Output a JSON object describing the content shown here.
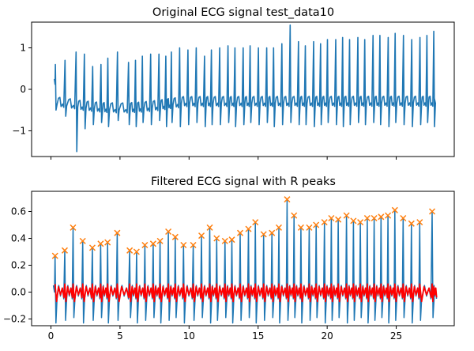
{
  "chart_data": [
    {
      "type": "line",
      "title": "Original ECG signal test_data10",
      "xlabel": "",
      "ylabel": "",
      "xlim": [
        -1.4,
        29.2
      ],
      "ylim": [
        -1.62,
        1.62
      ],
      "xticks": [
        0,
        5,
        10,
        15,
        20,
        25
      ],
      "xtick_labels": [
        "",
        "",
        "",
        "",
        "",
        ""
      ],
      "yticks": [
        -1,
        0,
        1
      ],
      "ytick_labels": [
        "−1",
        "0",
        "1"
      ],
      "grid": false,
      "colors": {
        "signal": "#1f77b4"
      },
      "signal": {
        "duration_s": 27.8,
        "beat_times": [
          0.3,
          1.0,
          1.8,
          2.4,
          3.0,
          3.6,
          4.1,
          4.8,
          5.6,
          6.1,
          6.6,
          7.2,
          7.8,
          8.3,
          8.7,
          9.3,
          9.9,
          10.5,
          11.1,
          11.6,
          12.2,
          12.8,
          13.3,
          13.9,
          14.4,
          15.0,
          15.6,
          16.1,
          16.7,
          17.3,
          17.9,
          18.4,
          19.0,
          19.5,
          20.0,
          20.6,
          21.1,
          21.6,
          22.2,
          22.7,
          23.3,
          23.8,
          24.4,
          24.9,
          25.5,
          26.1,
          26.7,
          27.2,
          27.7
        ],
        "r_peaks": [
          0.6,
          0.7,
          0.9,
          0.85,
          0.55,
          0.6,
          0.75,
          0.9,
          0.65,
          0.7,
          0.8,
          0.85,
          0.85,
          0.8,
          0.9,
          1.0,
          0.95,
          1.0,
          0.8,
          0.95,
          1.0,
          1.05,
          1.0,
          1.0,
          1.05,
          1.0,
          1.0,
          1.0,
          1.1,
          1.55,
          1.15,
          1.05,
          1.15,
          1.1,
          1.2,
          1.2,
          1.25,
          1.2,
          1.25,
          1.2,
          1.3,
          1.3,
          1.25,
          1.35,
          1.3,
          1.2,
          1.25,
          1.3,
          1.4
        ],
        "s_troughs": [
          -0.5,
          -0.65,
          -1.5,
          -0.95,
          -0.85,
          -0.8,
          -0.9,
          -0.75,
          -0.85,
          -0.9,
          -0.8,
          -0.85,
          -0.75,
          -0.9,
          -0.8,
          -0.9,
          -0.85,
          -0.8,
          -0.9,
          -0.85,
          -0.85,
          -0.8,
          -0.9,
          -0.85,
          -0.8,
          -0.85,
          -0.8,
          -0.9,
          -0.85,
          -0.8,
          -0.85,
          -0.85,
          -0.9,
          -0.85,
          -0.8,
          -0.85,
          -0.9,
          -0.85,
          -0.8,
          -0.85,
          -0.8,
          -0.85,
          -0.9,
          -0.8,
          -0.85,
          -0.9,
          -0.85,
          -0.8,
          -0.9
        ],
        "baseline_start": -0.3,
        "baseline_mid": -0.45,
        "baseline_end": -0.25
      }
    },
    {
      "type": "line",
      "title": "Filtered ECG signal with R peaks",
      "xlabel": "",
      "ylabel": "",
      "xlim": [
        -1.4,
        29.2
      ],
      "ylim": [
        -0.25,
        0.75
      ],
      "xticks": [
        0,
        5,
        10,
        15,
        20,
        25
      ],
      "xtick_labels": [
        "0",
        "5",
        "10",
        "15",
        "20",
        "25"
      ],
      "yticks": [
        -0.2,
        0.0,
        0.2,
        0.4,
        0.6
      ],
      "ytick_labels": [
        "−0.2",
        "0.0",
        "0.2",
        "0.4",
        "0.6"
      ],
      "grid": false,
      "colors": {
        "filtered": "#1f77b4",
        "envelope": "#ff0000",
        "peaks": "#ff7f0e"
      },
      "r_peaks": {
        "marker": "x",
        "x": [
          0.3,
          1.0,
          1.6,
          2.3,
          3.0,
          3.6,
          4.1,
          4.8,
          5.7,
          6.2,
          6.8,
          7.4,
          7.9,
          8.5,
          9.0,
          9.6,
          10.3,
          10.9,
          11.5,
          12.0,
          12.6,
          13.1,
          13.7,
          14.3,
          14.8,
          15.4,
          16.0,
          16.5,
          17.1,
          17.6,
          18.1,
          18.7,
          19.2,
          19.8,
          20.3,
          20.8,
          21.4,
          21.9,
          22.4,
          22.9,
          23.4,
          23.9,
          24.4,
          24.9,
          25.5,
          26.1,
          26.7,
          27.6
        ],
        "y": [
          0.27,
          0.31,
          0.48,
          0.38,
          0.33,
          0.36,
          0.37,
          0.44,
          0.31,
          0.3,
          0.35,
          0.36,
          0.38,
          0.45,
          0.41,
          0.35,
          0.35,
          0.42,
          0.48,
          0.4,
          0.38,
          0.39,
          0.44,
          0.47,
          0.52,
          0.43,
          0.44,
          0.48,
          0.69,
          0.57,
          0.48,
          0.48,
          0.5,
          0.52,
          0.55,
          0.54,
          0.57,
          0.53,
          0.52,
          0.55,
          0.55,
          0.56,
          0.57,
          0.61,
          0.55,
          0.51,
          0.52,
          0.6
        ]
      },
      "trough_value": -0.23
    }
  ]
}
